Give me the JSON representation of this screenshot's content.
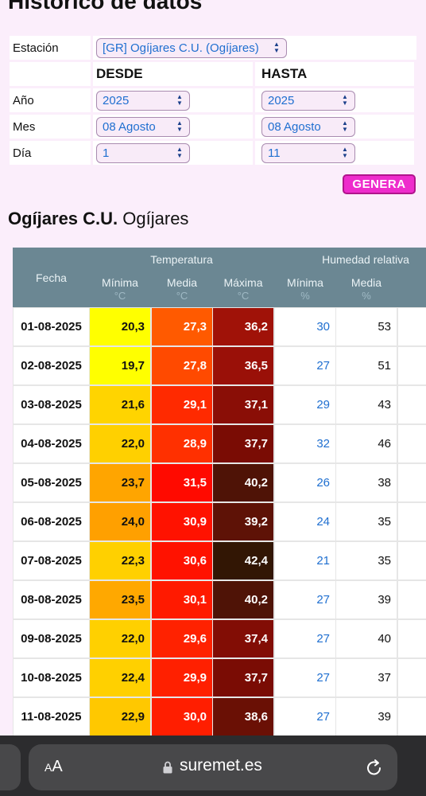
{
  "page": {
    "title": "Histórico de datos"
  },
  "form": {
    "station_label": "Estación",
    "station_value": "[GR] Ogíjares C.U. (Ogíjares)",
    "desde_label": "DESDE",
    "hasta_label": "HASTA",
    "year_label": "Año",
    "year_from": "2025",
    "year_to": "2025",
    "month_label": "Mes",
    "month_from": "08 Agosto",
    "month_to": "08 Agosto",
    "day_label": "Día",
    "day_from": "1",
    "day_to": "11",
    "generate_label": "GENERA"
  },
  "station": {
    "name_bold": "Ogíjares C.U.",
    "name_regular": "Ogíjares"
  },
  "table": {
    "headers": {
      "date": "Fecha",
      "temperature": "Temperatura",
      "humidity": "Humedad relativa",
      "t_min": "Mínima",
      "t_med": "Media",
      "t_max": "Máxima",
      "h_min": "Mínima",
      "h_med": "Media",
      "unit_c": "°C",
      "unit_pct": "%"
    },
    "rows": [
      {
        "date1": "01-08-",
        "date2": "2025",
        "tmin": "20,3",
        "tmed": "27,3",
        "tmax": "36,2",
        "hmin": "30",
        "hmed": "53",
        "cmin": "#ffff00",
        "cmed": "#ff5a00",
        "cmax": "#a01208"
      },
      {
        "date1": "02-08-",
        "date2": "2025",
        "tmin": "19,7",
        "tmed": "27,8",
        "tmax": "36,5",
        "hmin": "27",
        "hmed": "51",
        "cmin": "#ffff00",
        "cmed": "#ff4a00",
        "cmax": "#9a1008"
      },
      {
        "date1": "03-08-",
        "date2": "2025",
        "tmin": "21,6",
        "tmed": "29,1",
        "tmax": "37,1",
        "hmin": "29",
        "hmed": "43",
        "cmin": "#ffd400",
        "cmed": "#ff2a00",
        "cmax": "#8a0e06"
      },
      {
        "date1": "04-08-",
        "date2": "2025",
        "tmin": "22,0",
        "tmed": "28,9",
        "tmax": "37,7",
        "hmin": "32",
        "hmed": "46",
        "cmin": "#ffd000",
        "cmed": "#ff3000",
        "cmax": "#7a0c04"
      },
      {
        "date1": "05-08-",
        "date2": "2025",
        "tmin": "23,7",
        "tmed": "31,5",
        "tmax": "40,2",
        "hmin": "26",
        "hmed": "38",
        "cmin": "#ffa500",
        "cmed": "#ff0a00",
        "cmax": "#4f1306"
      },
      {
        "date1": "06-08-",
        "date2": "2025",
        "tmin": "24,0",
        "tmed": "30,9",
        "tmax": "39,2",
        "hmin": "24",
        "hmed": "35",
        "cmin": "#ffa000",
        "cmed": "#ff1200",
        "cmax": "#5e1206"
      },
      {
        "date1": "07-08-",
        "date2": "2025",
        "tmin": "22,3",
        "tmed": "30,6",
        "tmax": "42,4",
        "hmin": "21",
        "hmed": "35",
        "cmin": "#ffd000",
        "cmed": "#ff1200",
        "cmax": "#321604"
      },
      {
        "date1": "08-08-",
        "date2": "2025",
        "tmin": "23,5",
        "tmed": "30,1",
        "tmax": "40,2",
        "hmin": "27",
        "hmed": "39",
        "cmin": "#ffa800",
        "cmed": "#ff1a00",
        "cmax": "#4f1306"
      },
      {
        "date1": "09-08-",
        "date2": "2025",
        "tmin": "22,0",
        "tmed": "29,6",
        "tmax": "37,4",
        "hmin": "27",
        "hmed": "40",
        "cmin": "#ffd000",
        "cmed": "#ff2200",
        "cmax": "#820d05"
      },
      {
        "date1": "10-08-",
        "date2": "2025",
        "tmin": "22,4",
        "tmed": "29,9",
        "tmax": "37,7",
        "hmin": "27",
        "hmed": "37",
        "cmin": "#ffd000",
        "cmed": "#ff2000",
        "cmax": "#7a0c04"
      },
      {
        "date1": "11-08-",
        "date2": "2025",
        "tmin": "22,9",
        "tmed": "30,0",
        "tmax": "38,6",
        "hmin": "27",
        "hmed": "39",
        "cmin": "#ffc800",
        "cmed": "#ff1e00",
        "cmax": "#6a1005"
      }
    ]
  },
  "browser": {
    "aa_small": "A",
    "aa_large": "A",
    "url": "suremet.es"
  }
}
